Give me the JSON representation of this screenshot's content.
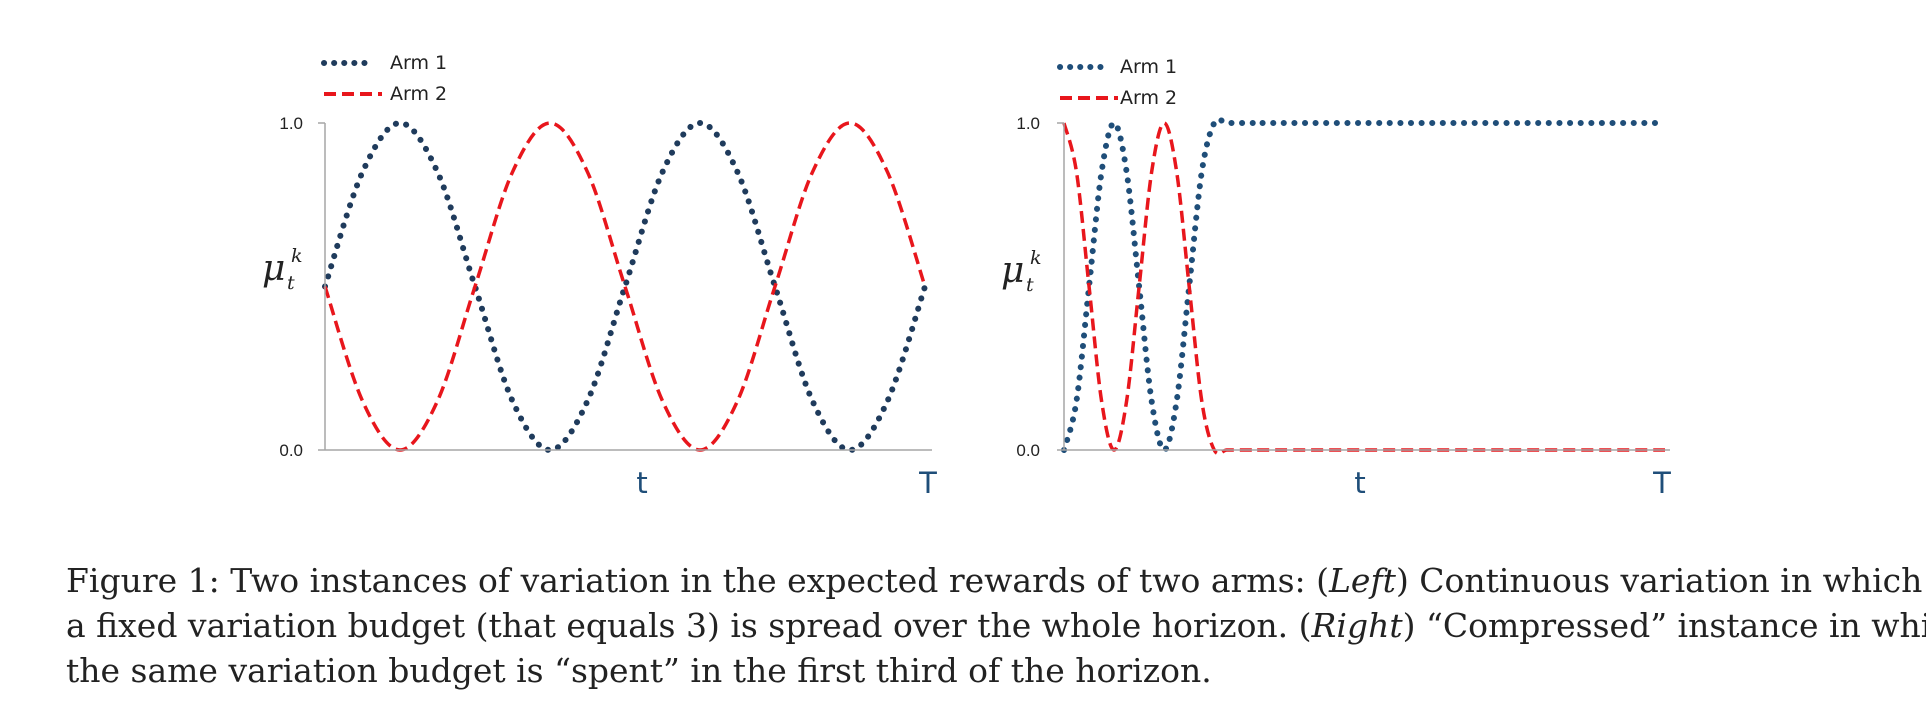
{
  "chart_data": [
    {
      "type": "line",
      "panel": "Left",
      "ylabel": "μ_t^k",
      "ylabel_main": "μ",
      "ylabel_sub": "t",
      "ylabel_sup": "k",
      "xlabel_t": "t",
      "xlabel_T": "T",
      "ytick_labels": [
        "0.0",
        "1.0"
      ],
      "ylim": [
        0,
        1
      ],
      "legend_position": "top-left",
      "x": [
        0,
        0.0625,
        0.125,
        0.1875,
        0.25,
        0.3125,
        0.375,
        0.4375,
        0.5,
        0.5625,
        0.625,
        0.6875,
        0.75,
        0.8125,
        0.875,
        0.9375,
        1.0
      ],
      "series": [
        {
          "name": "Arm 1",
          "style": "dotted",
          "color": "#1f3b5c",
          "values": [
            0.5,
            0.85,
            1.0,
            0.85,
            0.5,
            0.15,
            0.0,
            0.15,
            0.5,
            0.85,
            1.0,
            0.85,
            0.5,
            0.15,
            0.0,
            0.15,
            0.5
          ]
        },
        {
          "name": "Arm 2",
          "style": "dashed",
          "color": "#e8161c",
          "values": [
            0.5,
            0.15,
            0.0,
            0.15,
            0.5,
            0.85,
            1.0,
            0.85,
            0.5,
            0.15,
            0.0,
            0.15,
            0.5,
            0.85,
            1.0,
            0.85,
            0.5
          ]
        }
      ]
    },
    {
      "type": "line",
      "panel": "Right",
      "ylabel": "μ_t^k",
      "ylabel_main": "μ",
      "ylabel_sub": "t",
      "ylabel_sup": "k",
      "xlabel_t": "t",
      "xlabel_T": "T",
      "ytick_labels": [
        "0.0",
        "1.0"
      ],
      "ylim": [
        0,
        1
      ],
      "legend_position": "top-left",
      "x": [
        0,
        0.0208,
        0.0417,
        0.0625,
        0.0833,
        0.1042,
        0.125,
        0.1458,
        0.1667,
        0.1875,
        0.2083,
        0.2292,
        0.25,
        0.2708,
        0.2917,
        0.3125,
        0.3333,
        0.5,
        0.75,
        1.0
      ],
      "series": [
        {
          "name": "Arm 1",
          "style": "dotted",
          "color": "#1f4e79",
          "values": [
            0.0,
            0.15,
            0.5,
            0.85,
            1.0,
            0.85,
            0.5,
            0.15,
            0.0,
            0.15,
            0.5,
            0.85,
            1.0,
            1.0,
            1.0,
            1.0,
            1.0,
            1.0,
            1.0,
            1.0
          ]
        },
        {
          "name": "Arm 2",
          "style": "dashed",
          "color": "#e8161c",
          "values": [
            1.0,
            0.85,
            0.5,
            0.15,
            0.0,
            0.15,
            0.5,
            0.85,
            1.0,
            0.85,
            0.5,
            0.15,
            0.0,
            0.0,
            0.0,
            0.0,
            0.0,
            0.0,
            0.0,
            0.0
          ]
        }
      ]
    }
  ],
  "caption": {
    "prefix": "Figure 1: Two instances of variation in the expected rewards of two arms: (",
    "left_word": "Left",
    "mid1": ") Continuous variation in which",
    "line2_start": "a fixed variation budget (that equals 3) is spread over the whole horizon. (",
    "right_word": "Right",
    "mid2": ") “Compressed” instance in which",
    "line3": "the same variation budget is “spent” in the first third of the horizon."
  }
}
